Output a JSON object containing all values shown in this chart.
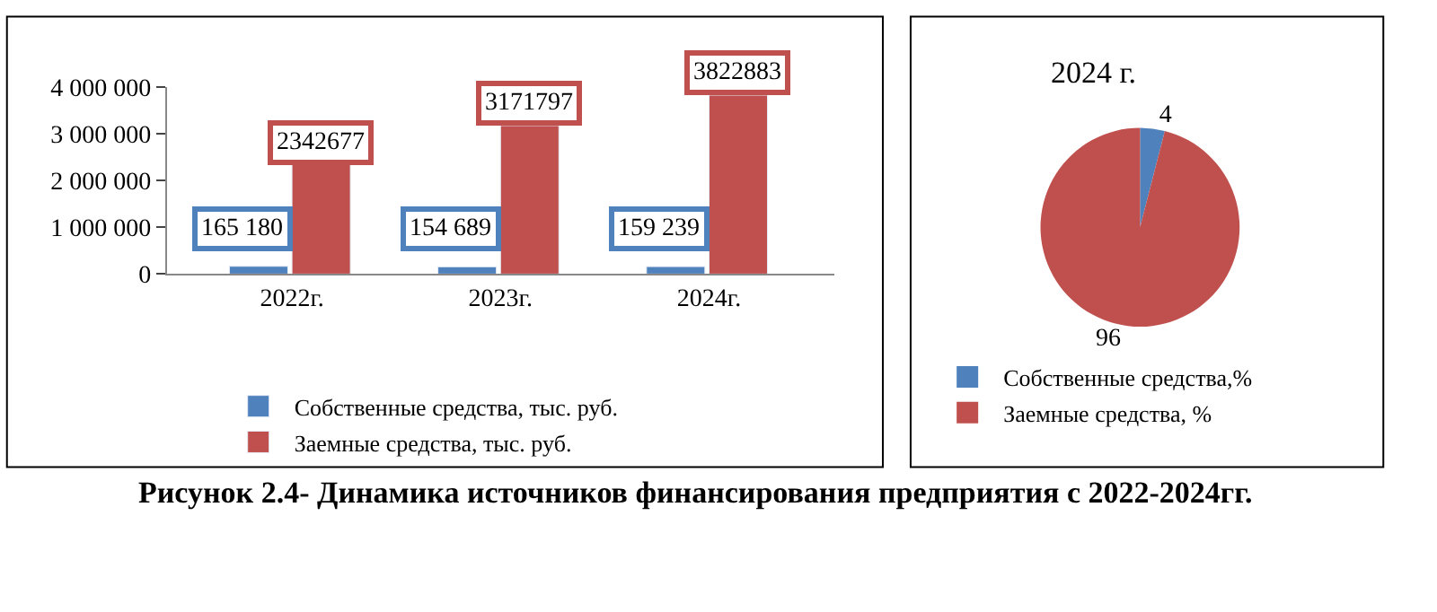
{
  "chart_data": [
    {
      "type": "bar",
      "categories": [
        "2022г.",
        "2023г.",
        "2024г."
      ],
      "series": [
        {
          "name": "Собственные средства, тыс. руб.",
          "color": "#4f81bd",
          "values": [
            165180,
            154689,
            159239
          ],
          "value_labels": [
            "165 180",
            "154 689",
            "159 239"
          ]
        },
        {
          "name": "Заемные средства, тыс. руб.",
          "color": "#c0504d",
          "values": [
            2342677,
            3171797,
            3822883
          ],
          "value_labels": [
            "2342677",
            "3171797",
            "3822883"
          ]
        }
      ],
      "ylim": [
        0,
        4000000
      ],
      "yticks": [
        0,
        {
          "value": 1000000,
          "label": "1 000 000"
        },
        {
          "value": 2000000,
          "label": "2 000 000"
        },
        {
          "value": 3000000,
          "label": "3 000 000"
        },
        {
          "value": 4000000,
          "label": "4 000 000"
        }
      ],
      "legend": "bottom",
      "annotations": [
        "Рисунок 2.4- Динамика источников финансирования предприятия с 2022-2024гг."
      ]
    },
    {
      "type": "pie",
      "title": "2024 г.",
      "categories": [
        "Собственные средства,%",
        "Заемные средства, %"
      ],
      "values": [
        4,
        96
      ],
      "colors": [
        "#4f81bd",
        "#c0504d"
      ],
      "data_labels": true,
      "legend": "bottom"
    }
  ]
}
